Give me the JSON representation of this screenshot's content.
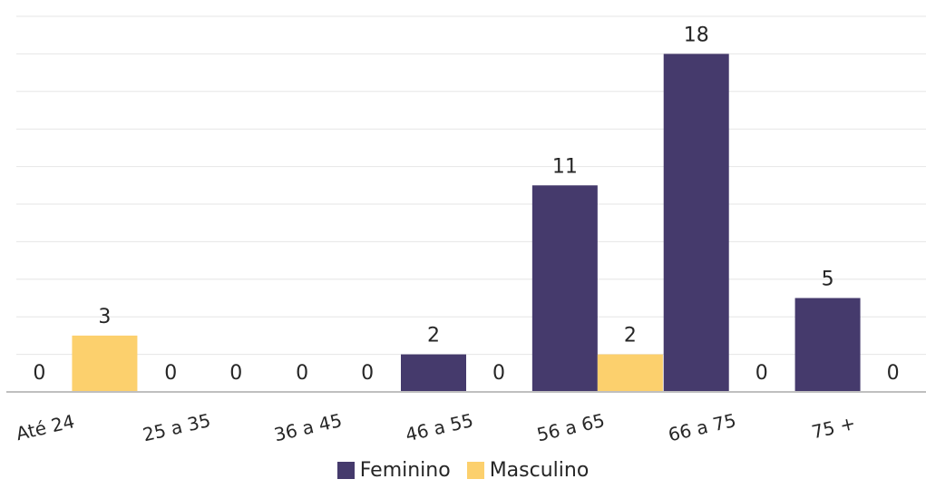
{
  "chart_data": {
    "type": "bar",
    "categories": [
      "Até 24",
      "25 a 35",
      "36 a 45",
      "46 a 55",
      "56 a 65",
      "66 a 75",
      "75 +"
    ],
    "series": [
      {
        "name": "Feminino",
        "values": [
          0,
          0,
          0,
          2,
          11,
          18,
          5
        ],
        "color": "#453A6C"
      },
      {
        "name": "Masculino",
        "values": [
          3,
          0,
          0,
          0,
          2,
          0,
          0
        ],
        "color": "#FCD06D"
      }
    ],
    "ylim": [
      0,
      20
    ],
    "grid": true,
    "legend_position": "bottom",
    "data_labels": true,
    "x_tick_rotation": "slanted"
  }
}
